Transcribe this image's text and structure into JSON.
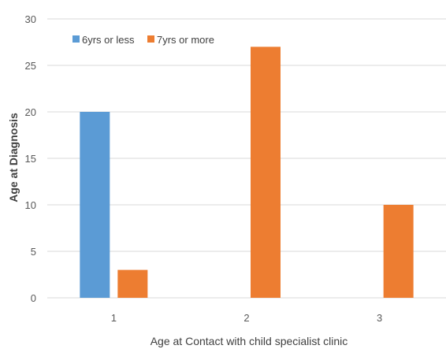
{
  "chart_data": {
    "type": "bar",
    "categories": [
      "1",
      "2",
      "3"
    ],
    "series": [
      {
        "name": "6yrs or less",
        "values": [
          20,
          0,
          0
        ],
        "color": "#5b9bd5"
      },
      {
        "name": "7yrs or more",
        "values": [
          3,
          27,
          10
        ],
        "color": "#ed7d31"
      }
    ],
    "xlabel": "Age at Contact with child specialist clinic",
    "ylabel": "Age at Diagnosis",
    "ylim": [
      0,
      30
    ],
    "yticks": [
      "0",
      "5",
      "10",
      "15",
      "20",
      "25",
      "30"
    ],
    "grid": true,
    "legend_position": "top-left",
    "gridline_color": "#d9d9d9"
  }
}
